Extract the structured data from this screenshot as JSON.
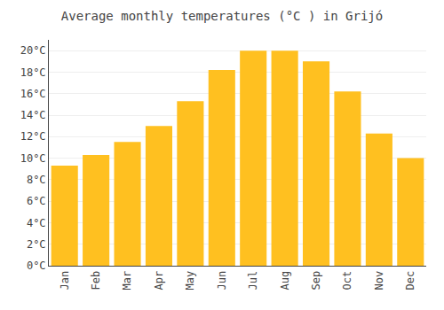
{
  "chart_data": {
    "type": "bar",
    "title": "Average monthly temperatures (°C ) in Grijó",
    "categories": [
      "Jan",
      "Feb",
      "Mar",
      "Apr",
      "May",
      "Jun",
      "Jul",
      "Aug",
      "Sep",
      "Oct",
      "Nov",
      "Dec"
    ],
    "values": [
      9.3,
      10.3,
      11.5,
      13.0,
      15.3,
      18.2,
      20.0,
      20.0,
      19.0,
      16.2,
      12.3,
      10.0
    ],
    "color": "#FFC020",
    "ylim": [
      0,
      21
    ],
    "yticks": [
      {
        "value": 0,
        "label": "0°C"
      },
      {
        "value": 2,
        "label": "2°C"
      },
      {
        "value": 4,
        "label": "4°C"
      },
      {
        "value": 6,
        "label": "6°C"
      },
      {
        "value": 8,
        "label": "8°C"
      },
      {
        "value": 10,
        "label": "10°C"
      },
      {
        "value": 12,
        "label": "12°C"
      },
      {
        "value": 14,
        "label": "14°C"
      },
      {
        "value": 16,
        "label": "16°C"
      },
      {
        "value": 18,
        "label": "18°C"
      },
      {
        "value": 20,
        "label": "20°C"
      }
    ],
    "grid": true
  }
}
